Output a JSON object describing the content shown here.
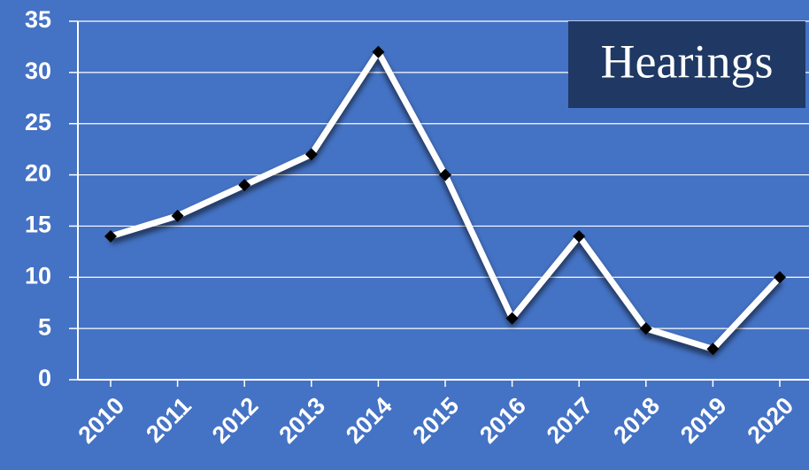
{
  "chart_data": {
    "type": "line",
    "title": "Hearings",
    "categories": [
      "2010",
      "2011",
      "2012",
      "2013",
      "2014",
      "2015",
      "2016",
      "2017",
      "2018",
      "2019",
      "2020"
    ],
    "values": [
      14,
      16,
      19,
      22,
      32,
      20,
      6,
      14,
      5,
      3,
      10
    ],
    "color": "#ffffff",
    "marker_color": "#000000",
    "background": "#4472c4",
    "title_background": "#1f3864",
    "ylim": [
      0,
      35
    ],
    "yticks": [
      0,
      5,
      10,
      15,
      20,
      25,
      30,
      35
    ],
    "grid": true
  }
}
